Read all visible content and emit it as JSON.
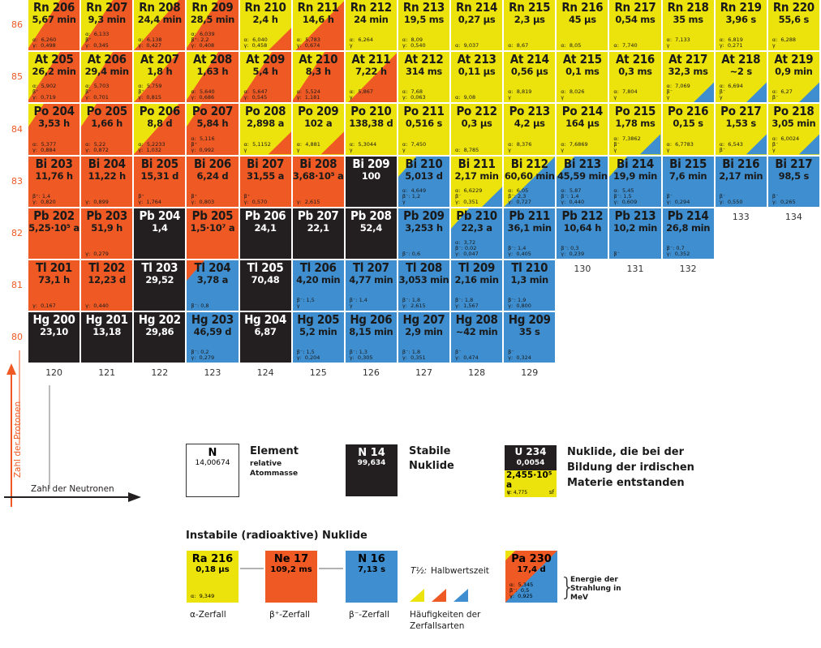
{
  "colors": {
    "alpha": "#ede30c",
    "beta_plus": "#ef5a24",
    "beta_minus": "#3f8fd0",
    "stable": "#231f20",
    "axis": "#ef5a24"
  },
  "axes": {
    "protons_label": "Zahl der Protonen",
    "neutrons_label": "Zahl der Neutronen",
    "z_values": [
      "86",
      "85",
      "84",
      "83",
      "82",
      "81",
      "80"
    ],
    "n_values": [
      "120",
      "121",
      "122",
      "123",
      "124",
      "125",
      "126",
      "127",
      "128",
      "129"
    ],
    "n_values_extra": [
      {
        "n": "130",
        "row": 82
      },
      {
        "n": "131",
        "row": 82
      },
      {
        "n": "132",
        "row": 82
      },
      {
        "n": "133",
        "row": 83
      },
      {
        "n": "134",
        "row": 83
      }
    ]
  },
  "nuclides": [
    {
      "name": "Rn 206",
      "z": 86,
      "n": 120,
      "hl": "5,67 min",
      "bg": "o",
      "tri": "y",
      "en": "α:  6,260\nγ:  0,498"
    },
    {
      "name": "Rn 207",
      "z": 86,
      "n": 121,
      "hl": "9,3 min",
      "bg": "o",
      "tri": "y",
      "en": "α:  6,133\nβ⁺\nγ:  0,345"
    },
    {
      "name": "Rn 208",
      "z": 86,
      "n": 122,
      "hl": "24,4 min",
      "bg": "o",
      "tri": "y-big",
      "en": "α:  6,138\nγ:  0,427"
    },
    {
      "name": "Rn 209",
      "z": 86,
      "n": 123,
      "hl": "28,5 min",
      "bg": "o",
      "tri": "y",
      "en": "α:  6,039\nβ⁺: 2,2\nγ:  0,408"
    },
    {
      "name": "Rn 210",
      "z": 86,
      "n": 124,
      "hl": "2,4 h",
      "bg": "y",
      "tri": "o-small",
      "en": "α:  6,040\nγ:  0,458"
    },
    {
      "name": "Rn 211",
      "z": 86,
      "n": 125,
      "hl": "14,6 h",
      "bg": "y",
      "tri": "o-big",
      "en": "α:  5,783\nγ:  0,674"
    },
    {
      "name": "Rn 212",
      "z": 86,
      "n": 126,
      "hl": "24 min",
      "bg": "y",
      "tri": "",
      "en": "α:  6,264\nγ"
    },
    {
      "name": "Rn 213",
      "z": 86,
      "n": 127,
      "hl": "19,5 ms",
      "bg": "y",
      "tri": "",
      "en": "α:  8,09\nγ:  0,540"
    },
    {
      "name": "Rn 214",
      "z": 86,
      "n": 128,
      "hl": "0,27 µs",
      "bg": "y",
      "tri": "",
      "en": "α:  9,037"
    },
    {
      "name": "Rn 215",
      "z": 86,
      "n": 129,
      "hl": "2,3 µs",
      "bg": "y",
      "tri": "",
      "en": "α:  8,67"
    },
    {
      "name": "Rn 216",
      "z": 86,
      "n": 130,
      "hl": "45 µs",
      "bg": "y",
      "tri": "",
      "en": "α:  8,05"
    },
    {
      "name": "Rn 217",
      "z": 86,
      "n": 131,
      "hl": "0,54 ms",
      "bg": "y",
      "tri": "",
      "en": "α:  7,740"
    },
    {
      "name": "Rn 218",
      "z": 86,
      "n": 132,
      "hl": "35 ms",
      "bg": "y",
      "tri": "",
      "en": "α:  7,133\nγ"
    },
    {
      "name": "Rn 219",
      "z": 86,
      "n": 133,
      "hl": "3,96 s",
      "bg": "y",
      "tri": "",
      "en": "α:  6,819\nγ:  0,271"
    },
    {
      "name": "Rn 220",
      "z": 86,
      "n": 134,
      "hl": "55,6 s",
      "bg": "y",
      "tri": "",
      "en": "α:  6,288\nγ"
    },
    {
      "name": "At 205",
      "z": 85,
      "n": 120,
      "hl": "26,2 min",
      "bg": "o",
      "tri": "y",
      "en": "α:  5,902\nβ⁺\nγ:  0,719"
    },
    {
      "name": "At 206",
      "z": 85,
      "n": 121,
      "hl": "29,4 min",
      "bg": "o",
      "tri": "y",
      "en": "α:  5,703\nβ⁺\nγ:  0,701"
    },
    {
      "name": "At 207",
      "z": 85,
      "n": 122,
      "hl": "1,8 h",
      "bg": "o",
      "tri": "y-big",
      "en": "α:  5,759\nβ⁺\nγ:  0,815"
    },
    {
      "name": "At 208",
      "z": 85,
      "n": 123,
      "hl": "1,63 h",
      "bg": "o",
      "tri": "y",
      "en": "α:  5,640\nγ:  0,686"
    },
    {
      "name": "At 209",
      "z": 85,
      "n": 124,
      "hl": "5,4 h",
      "bg": "o",
      "tri": "y",
      "en": "α:  5,647\nγ:  0,545"
    },
    {
      "name": "At 210",
      "z": 85,
      "n": 125,
      "hl": "8,3 h",
      "bg": "o",
      "tri": "y",
      "en": "α:  5,524\nγ:  1,181"
    },
    {
      "name": "At 211",
      "z": 85,
      "n": 126,
      "hl": "7,22 h",
      "bg": "y",
      "tri": "o-big",
      "en": "α:  5,867\nγ"
    },
    {
      "name": "At 212",
      "z": 85,
      "n": 127,
      "hl": "314 ms",
      "bg": "y",
      "tri": "",
      "en": "α:  7,68\nγ:  0,063"
    },
    {
      "name": "At 213",
      "z": 85,
      "n": 128,
      "hl": "0,11 µs",
      "bg": "y",
      "tri": "",
      "en": "α:  9,08"
    },
    {
      "name": "At 214",
      "z": 85,
      "n": 129,
      "hl": "0,56 µs",
      "bg": "y",
      "tri": "",
      "en": "α:  8,819\nγ"
    },
    {
      "name": "At 215",
      "z": 85,
      "n": 130,
      "hl": "0,1 ms",
      "bg": "y",
      "tri": "",
      "en": "α:  8,026\nγ"
    },
    {
      "name": "At 216",
      "z": 85,
      "n": 131,
      "hl": "0,3 ms",
      "bg": "y",
      "tri": "",
      "en": "α:  7,804\nγ"
    },
    {
      "name": "At 217",
      "z": 85,
      "n": 132,
      "hl": "32,3 ms",
      "bg": "y",
      "tri": "b-small",
      "en": "α:  7,069\nβ⁻\nγ"
    },
    {
      "name": "At 218",
      "z": 85,
      "n": 133,
      "hl": "~2 s",
      "bg": "y",
      "tri": "b-small",
      "en": "α:  6,694\nβ⁻\nγ"
    },
    {
      "name": "At 219",
      "z": 85,
      "n": 134,
      "hl": "0,9 min",
      "bg": "y",
      "tri": "b-small",
      "en": "α:  6,27\nβ⁻"
    },
    {
      "name": "Po 204",
      "z": 84,
      "n": 120,
      "hl": "3,53 h",
      "bg": "o",
      "tri": "y-small",
      "en": "α:  5,377\nγ:  0,884"
    },
    {
      "name": "Po 205",
      "z": 84,
      "n": 121,
      "hl": "1,66 h",
      "bg": "o",
      "tri": "y-small",
      "en": "α:  5,22\nγ:  0,872"
    },
    {
      "name": "Po 206",
      "z": 84,
      "n": 122,
      "hl": "8,8 d",
      "bg": "o",
      "tri": "y-big",
      "en": "α:  5,2233\nγ:  1,032"
    },
    {
      "name": "Po 207",
      "z": 84,
      "n": 123,
      "hl": "5,84 h",
      "bg": "o",
      "tri": "y-small",
      "en": "α:  5,116\nβ⁺\nγ:  0,992"
    },
    {
      "name": "Po 208",
      "z": 84,
      "n": 124,
      "hl": "2,898 a",
      "bg": "y",
      "tri": "o-small",
      "en": "α:  5,1152\nγ"
    },
    {
      "name": "Po 209",
      "z": 84,
      "n": 125,
      "hl": "102 a",
      "bg": "y",
      "tri": "o-small",
      "en": "α:  4,881\nγ"
    },
    {
      "name": "Po 210",
      "z": 84,
      "n": 126,
      "hl": "138,38 d",
      "bg": "y",
      "tri": "",
      "en": "α:  5,3044\nγ"
    },
    {
      "name": "Po 211",
      "z": 84,
      "n": 127,
      "hl": "0,516 s",
      "bg": "y",
      "tri": "",
      "en": "α:  7,450\nγ"
    },
    {
      "name": "Po 212",
      "z": 84,
      "n": 128,
      "hl": "0,3 µs",
      "bg": "y",
      "tri": "",
      "en": "α:  8,785"
    },
    {
      "name": "Po 213",
      "z": 84,
      "n": 129,
      "hl": "4,2 µs",
      "bg": "y",
      "tri": "",
      "en": "α:  8,376\nγ"
    },
    {
      "name": "Po 214",
      "z": 84,
      "n": 130,
      "hl": "164 µs",
      "bg": "y",
      "tri": "",
      "en": "α:  7,6869\nγ"
    },
    {
      "name": "Po 215",
      "z": 84,
      "n": 131,
      "hl": "1,78 ms",
      "bg": "y",
      "tri": "b-small",
      "en": "α:  7,3862\nβ⁻\nγ"
    },
    {
      "name": "Po 216",
      "z": 84,
      "n": 132,
      "hl": "0,15 s",
      "bg": "y",
      "tri": "",
      "en": "α:  6,7783\nγ"
    },
    {
      "name": "Po 217",
      "z": 84,
      "n": 133,
      "hl": "1,53 s",
      "bg": "y",
      "tri": "b-small",
      "en": "α:  6,543\nβ⁻"
    },
    {
      "name": "Po 218",
      "z": 84,
      "n": 134,
      "hl": "3,05 min",
      "bg": "y",
      "tri": "b-small",
      "en": "α:  6,0024\nβ⁻\nγ"
    },
    {
      "name": "Bi 203",
      "z": 83,
      "n": 120,
      "hl": "11,76 h",
      "bg": "o",
      "tri": "",
      "en": "β⁺: 1,4\nγ:  0,820"
    },
    {
      "name": "Bi 204",
      "z": 83,
      "n": 121,
      "hl": "11,22 h",
      "bg": "o",
      "tri": "",
      "en": "γ:  0,899"
    },
    {
      "name": "Bi 205",
      "z": 83,
      "n": 122,
      "hl": "15,31 d",
      "bg": "o",
      "tri": "",
      "en": "β⁺\nγ:  1,764"
    },
    {
      "name": "Bi 206",
      "z": 83,
      "n": 123,
      "hl": "6,24 d",
      "bg": "o",
      "tri": "",
      "en": "β⁺\nγ:  0,803"
    },
    {
      "name": "Bi 207",
      "z": 83,
      "n": 124,
      "hl": "31,55 a",
      "bg": "o",
      "tri": "",
      "en": "β⁺\nγ:  0,570"
    },
    {
      "name": "Bi 208",
      "z": 83,
      "n": 125,
      "hl": "3,68·10⁵ a",
      "bg": "o",
      "tri": "",
      "en": "γ:  2,615"
    },
    {
      "name": "Bi 209",
      "z": 83,
      "n": 126,
      "hl": "100",
      "bg": "k",
      "tri": "",
      "en": ""
    },
    {
      "name": "Bi 210",
      "z": 83,
      "n": 127,
      "hl": "5,013 d",
      "bg": "b",
      "tri": "y-small-tl",
      "en": "α:  4,649\nβ⁻: 1,2\nγ"
    },
    {
      "name": "Bi 211",
      "z": 83,
      "n": 128,
      "hl": "2,17 min",
      "bg": "y",
      "tri": "b-small",
      "en": "α:  6,6229\nβ⁻\nγ:  0,351"
    },
    {
      "name": "Bi 212",
      "z": 83,
      "n": 129,
      "hl": "60,60 min",
      "bg": "b",
      "tri": "y-tl-big",
      "en": "α:  6,05\nβ⁻: 2,3\nγ:  0,727"
    },
    {
      "name": "Bi 213",
      "z": 83,
      "n": 130,
      "hl": "45,59 min",
      "bg": "b",
      "tri": "y-small-tl",
      "en": "α:  5,87\nβ⁻: 1,4\nγ:  0,440"
    },
    {
      "name": "Bi 214",
      "z": 83,
      "n": 131,
      "hl": "19,9 min",
      "bg": "b",
      "tri": "y-small-tl",
      "en": "α:  5,45\nβ⁻: 1,5\nγ:  0,609"
    },
    {
      "name": "Bi 215",
      "z": 83,
      "n": 132,
      "hl": "7,6 min",
      "bg": "b",
      "tri": "",
      "en": "β⁻\nγ:  0,294"
    },
    {
      "name": "Bi 216",
      "z": 83,
      "n": 133,
      "hl": "2,17 min",
      "bg": "b",
      "tri": "",
      "en": "β⁻\nγ:  0,550"
    },
    {
      "name": "Bi 217",
      "z": 83,
      "n": 134,
      "hl": "98,5 s",
      "bg": "b",
      "tri": "",
      "en": "β⁻\nγ:  0,265"
    },
    {
      "name": "Pb 202",
      "z": 82,
      "n": 120,
      "hl": "5,25·10⁵ a",
      "bg": "o",
      "tri": "",
      "en": ""
    },
    {
      "name": "Pb 203",
      "z": 82,
      "n": 121,
      "hl": "51,9 h",
      "bg": "o",
      "tri": "",
      "en": "γ:  0,279"
    },
    {
      "name": "Pb 204",
      "z": 82,
      "n": 122,
      "hl": "1,4",
      "bg": "k",
      "tri": "",
      "en": ""
    },
    {
      "name": "Pb 205",
      "z": 82,
      "n": 123,
      "hl": "1,5·10⁷ a",
      "bg": "o",
      "tri": "",
      "en": ""
    },
    {
      "name": "Pb 206",
      "z": 82,
      "n": 124,
      "hl": "24,1",
      "bg": "k",
      "tri": "",
      "en": ""
    },
    {
      "name": "Pb 207",
      "z": 82,
      "n": 125,
      "hl": "22,1",
      "bg": "k",
      "tri": "",
      "en": ""
    },
    {
      "name": "Pb 208",
      "z": 82,
      "n": 126,
      "hl": "52,4",
      "bg": "k",
      "tri": "",
      "en": ""
    },
    {
      "name": "Pb 209",
      "z": 82,
      "n": 127,
      "hl": "3,253 h",
      "bg": "b",
      "tri": "",
      "en": "β⁻: 0,6"
    },
    {
      "name": "Pb 210",
      "z": 82,
      "n": 128,
      "hl": "22,3 a",
      "bg": "b",
      "tri": "y-small-tl",
      "en": "α:  3,72\nβ⁻: 0,02\nγ:  0,047"
    },
    {
      "name": "Pb 211",
      "z": 82,
      "n": 129,
      "hl": "36,1 min",
      "bg": "b",
      "tri": "",
      "en": "β⁻: 1,4\nγ:  0,405"
    },
    {
      "name": "Pb 212",
      "z": 82,
      "n": 130,
      "hl": "10,64 h",
      "bg": "b",
      "tri": "",
      "en": "β⁻: 0,3\nγ:  0,239"
    },
    {
      "name": "Pb 213",
      "z": 82,
      "n": 131,
      "hl": "10,2 min",
      "bg": "b",
      "tri": "",
      "en": "β⁻"
    },
    {
      "name": "Pb 214",
      "z": 82,
      "n": 132,
      "hl": "26,8 min",
      "bg": "b",
      "tri": "",
      "en": "β⁻: 0,7\nγ:  0,352"
    },
    {
      "name": "Tl 201",
      "z": 81,
      "n": 120,
      "hl": "73,1 h",
      "bg": "o",
      "tri": "",
      "en": "γ:  0,167"
    },
    {
      "name": "Tl 202",
      "z": 81,
      "n": 121,
      "hl": "12,23 d",
      "bg": "o",
      "tri": "",
      "en": "γ:  0,440"
    },
    {
      "name": "Tl 203",
      "z": 81,
      "n": 122,
      "hl": "29,52",
      "bg": "k",
      "tri": "",
      "en": ""
    },
    {
      "name": "Tl 204",
      "z": 81,
      "n": 123,
      "hl": "3,78 a",
      "bg": "b",
      "tri": "o-small-tl",
      "en": "β⁻: 0,8"
    },
    {
      "name": "Tl 205",
      "z": 81,
      "n": 124,
      "hl": "70,48",
      "bg": "k",
      "tri": "",
      "en": ""
    },
    {
      "name": "Tl 206",
      "z": 81,
      "n": 125,
      "hl": "4,20 min",
      "bg": "b",
      "tri": "",
      "en": "β⁻: 1,5\nγ"
    },
    {
      "name": "Tl 207",
      "z": 81,
      "n": 126,
      "hl": "4,77 min",
      "bg": "b",
      "tri": "",
      "en": "β⁻: 1,4\nγ"
    },
    {
      "name": "Tl 208",
      "z": 81,
      "n": 127,
      "hl": "3,053 min",
      "bg": "b",
      "tri": "",
      "en": "β⁻: 1,8\nγ:  2,615"
    },
    {
      "name": "Tl 209",
      "z": 81,
      "n": 128,
      "hl": "2,16 min",
      "bg": "b",
      "tri": "",
      "en": "β⁻: 1,8\nγ:  1,567"
    },
    {
      "name": "Tl 210",
      "z": 81,
      "n": 129,
      "hl": "1,3 min",
      "bg": "b",
      "tri": "",
      "en": "β⁻: 1,9\nγ:  0,800"
    },
    {
      "name": "Hg 200",
      "z": 80,
      "n": 120,
      "hl": "23,10",
      "bg": "k",
      "tri": "",
      "en": ""
    },
    {
      "name": "Hg 201",
      "z": 80,
      "n": 121,
      "hl": "13,18",
      "bg": "k",
      "tri": "",
      "en": ""
    },
    {
      "name": "Hg 202",
      "z": 80,
      "n": 122,
      "hl": "29,86",
      "bg": "k",
      "tri": "",
      "en": ""
    },
    {
      "name": "Hg 203",
      "z": 80,
      "n": 123,
      "hl": "46,59 d",
      "bg": "b",
      "tri": "",
      "en": "β⁻: 0,2\nγ:  0,279"
    },
    {
      "name": "Hg 204",
      "z": 80,
      "n": 124,
      "hl": "6,87",
      "bg": "k",
      "tri": "",
      "en": ""
    },
    {
      "name": "Hg 205",
      "z": 80,
      "n": 125,
      "hl": "5,2 min",
      "bg": "b",
      "tri": "",
      "en": "β⁻: 1,5\nγ:  0,204"
    },
    {
      "name": "Hg 206",
      "z": 80,
      "n": 126,
      "hl": "8,15 min",
      "bg": "b",
      "tri": "",
      "en": "β⁻: 1,3\nγ:  0,305"
    },
    {
      "name": "Hg 207",
      "z": 80,
      "n": 127,
      "hl": "2,9 min",
      "bg": "b",
      "tri": "",
      "en": "β⁻: 1,8\nγ:  0,351"
    },
    {
      "name": "Hg 208",
      "z": 80,
      "n": 128,
      "hl": "~42 min",
      "bg": "b",
      "tri": "",
      "en": "β⁻\nγ:  0,474"
    },
    {
      "name": "Hg 209",
      "z": 80,
      "n": 129,
      "hl": "35 s",
      "bg": "b",
      "tri": "",
      "en": "β⁻\nγ:  0,324"
    }
  ],
  "legend": {
    "element_box": {
      "symbol": "N",
      "mass": "14,00674"
    },
    "element_title": "Element",
    "element_sub": [
      "relative",
      "Atommasse"
    ],
    "stable_box": {
      "name": "N 14",
      "abundance": "99,634"
    },
    "stable_title": [
      "Stabile",
      "Nuklide"
    ],
    "primordial_box": {
      "name": "U 234",
      "abundance": "0,0054",
      "halflife": "2,455·10⁵ a",
      "alpha": "α: 4,775",
      "gamma": "γ",
      "sf": "sf"
    },
    "primordial_text": [
      "Nuklide, die bei der",
      "Bildung der irdischen",
      "Materie entstanden"
    ],
    "unstable_title": "Instabile (radioaktive) Nuklide",
    "alpha_box": {
      "name": "Ra 216",
      "halflife": "0,18 µs",
      "energy": "α:  9,349",
      "caption": "α-Zerfall"
    },
    "betaplus_box": {
      "name": "Ne 17",
      "halflife": "109,2 ms",
      "caption": "β⁺-Zerfall"
    },
    "betaminus_box": {
      "name": "N 16",
      "halflife": "7,13 s",
      "caption": "β⁻-Zerfall"
    },
    "halflife_label": "Halbwertszeit",
    "halflife_symbol": "T½:",
    "frequency_caption": [
      "Häufigkeiten der",
      "Zerfallsarten"
    ],
    "example_box": {
      "name": "Pa 230",
      "halflife": "17,4 d",
      "energy": "α:  5,345\nβ⁻:  0,5\nγ:  0,925"
    },
    "energy_caption": [
      "Energie der",
      "Strahlung in",
      "MeV"
    ]
  }
}
